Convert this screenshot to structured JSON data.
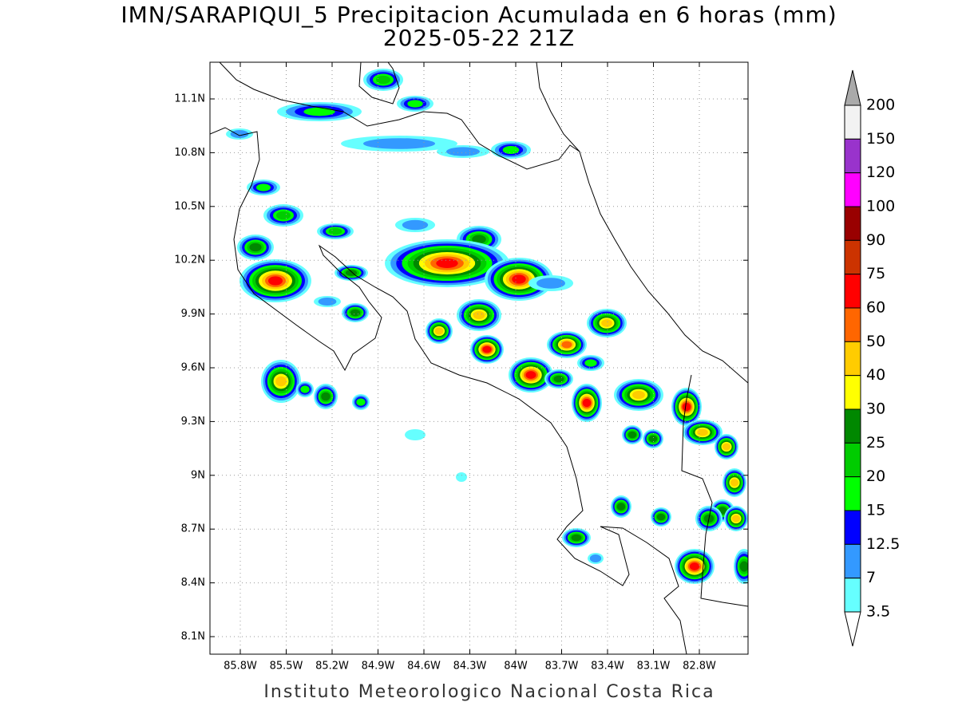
{
  "title": "IMN/SARAPIQUI_5 Precipitacion Acumulada en 6 horas (mm)",
  "subtitle": "2025-05-22 21Z",
  "footer": "Instituto Meteorologico Nacional Costa Rica",
  "lat_labels": [
    "11.1N",
    "10.8N",
    "10.5N",
    "10.2N",
    "9.9N",
    "9.6N",
    "9.3N",
    "9N",
    "8.7N",
    "8.4N",
    "8.1N"
  ],
  "lon_labels": [
    "85.8W",
    "85.5W",
    "85.2W",
    "84.9W",
    "84.6W",
    "84.3W",
    "84W",
    "83.7W",
    "83.4W",
    "83.1W",
    "82.8W"
  ],
  "colorbar": {
    "labels": [
      200,
      150,
      120,
      100,
      90,
      75,
      60,
      50,
      40,
      30,
      25,
      20,
      15,
      12.5,
      7,
      3.5
    ],
    "colors": [
      "#f2f2f2",
      "#9933cc",
      "#ff00ff",
      "#990000",
      "#cc3300",
      "#ff0000",
      "#ff6600",
      "#ffcc00",
      "#ffff00",
      "#008800",
      "#00cc00",
      "#00ff00",
      "#0000ff",
      "#3399ff",
      "#66ffff"
    ],
    "over_color": "#aaaaaa",
    "under_color": "#ffffff"
  }
}
